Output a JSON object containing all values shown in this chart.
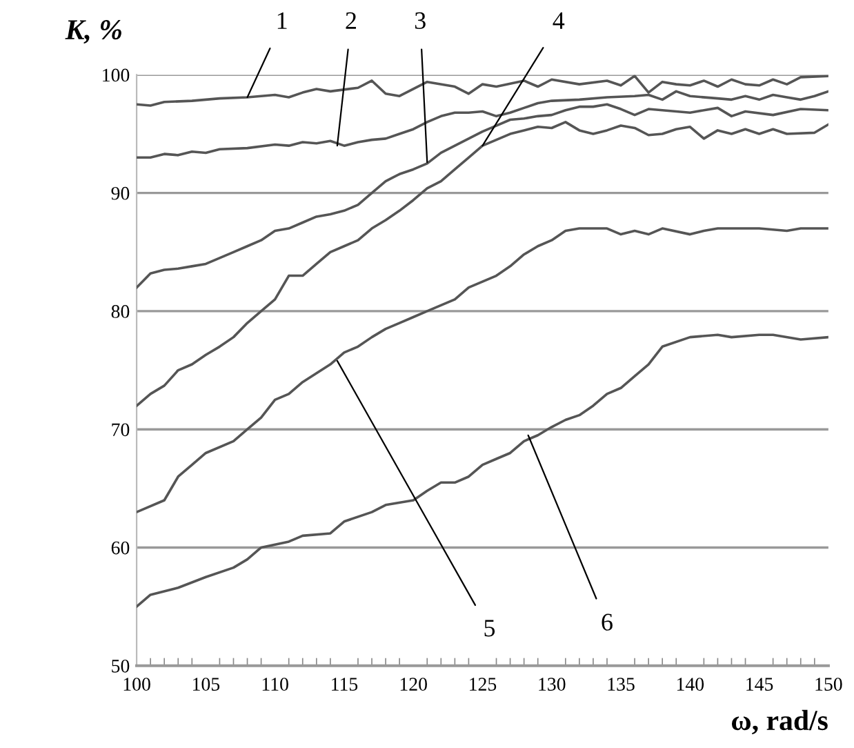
{
  "chart_data": {
    "type": "line",
    "xlabel": "ω, rad/s",
    "ylabel": "K, %",
    "xlim": [
      100,
      150
    ],
    "xticks": [
      100,
      105,
      110,
      115,
      120,
      125,
      130,
      135,
      140,
      145,
      150
    ],
    "ylim": [
      50,
      100
    ],
    "yticks": [
      50,
      60,
      70,
      80,
      90,
      100
    ],
    "grid": "y",
    "marker": "none",
    "line_style": "solid",
    "legend": false,
    "series": [
      {
        "color": "#555555",
        "x": [
          100,
          101,
          102,
          104,
          106,
          108,
          110,
          111,
          112,
          113,
          114,
          116,
          117,
          118,
          119,
          120,
          121,
          123,
          124,
          125,
          126,
          128,
          129,
          130,
          132,
          134,
          135,
          136,
          137,
          138,
          139,
          140,
          141,
          142,
          143,
          144,
          145,
          146,
          147,
          148,
          150
        ],
        "values": [
          97.5,
          97.4,
          97.7,
          97.8,
          98,
          98.1,
          98.3,
          98.1,
          98.5,
          98.8,
          98.6,
          98.9,
          99.5,
          98.4,
          98.2,
          98.8,
          99.4,
          99,
          98.4,
          99.2,
          99,
          99.5,
          99,
          99.6,
          99.2,
          99.5,
          99.1,
          99.9,
          98.5,
          99.4,
          99.2,
          99.1,
          99.5,
          99.0,
          99.6,
          99.2,
          99.1,
          99.6,
          99.2,
          99.8,
          99.9
        ]
      },
      {
        "color": "#555555",
        "x": [
          100,
          101,
          102,
          103,
          104,
          105,
          106,
          108,
          110,
          111,
          112,
          113,
          114,
          115,
          116,
          117,
          118,
          119,
          120,
          121,
          122,
          123,
          124,
          125,
          126,
          127,
          128,
          129,
          130,
          132,
          134,
          136,
          137,
          138,
          139,
          140,
          142,
          143,
          144,
          145,
          146,
          147,
          148,
          149,
          150
        ],
        "values": [
          93,
          93.0,
          93.3,
          93.2,
          93.5,
          93.4,
          93.7,
          93.8,
          94.1,
          94,
          94.3,
          94.2,
          94.4,
          94,
          94.3,
          94.5,
          94.6,
          95,
          95.4,
          96,
          96.5,
          96.8,
          96.8,
          96.9,
          96.5,
          96.8,
          97.2,
          97.6,
          97.8,
          97.9,
          98.1,
          98.2,
          98.3,
          97.9,
          98.6,
          98.2,
          98.0,
          97.9,
          98.2,
          97.9,
          98.3,
          98.1,
          97.9,
          98.2,
          98.6
        ]
      },
      {
        "color": "#555555",
        "x": [
          100,
          101,
          102,
          103,
          104,
          105,
          106,
          107,
          108,
          109,
          110,
          111,
          112,
          113,
          114,
          115,
          116,
          117,
          118,
          119,
          120,
          121,
          122,
          123,
          124,
          125,
          126,
          127,
          128,
          129,
          130,
          131,
          132,
          133,
          134,
          135,
          136,
          137,
          138,
          140,
          142,
          143,
          144,
          146,
          148,
          150
        ],
        "values": [
          82,
          83.2,
          83.5,
          83.6,
          83.8,
          84,
          84.5,
          85,
          85.5,
          86,
          86.8,
          87,
          87.5,
          88,
          88.2,
          88.5,
          89,
          90,
          91,
          91.6,
          92,
          92.5,
          93.4,
          94,
          94.6,
          95.2,
          95.7,
          96.2,
          96.3,
          96.5,
          96.6,
          97.0,
          97.3,
          97.3,
          97.5,
          97.1,
          96.6,
          97.1,
          97.0,
          96.8,
          97.2,
          96.5,
          96.9,
          96.6,
          97.1,
          97.0
        ]
      },
      {
        "color": "#555555",
        "x": [
          100,
          101,
          102,
          103,
          104,
          105,
          106,
          107,
          108,
          109,
          110,
          111,
          112,
          113,
          114,
          115,
          116,
          117,
          118,
          119,
          120,
          121,
          122,
          123,
          124,
          125,
          126,
          127,
          128,
          129,
          130,
          131,
          132,
          133,
          134,
          135,
          136,
          137,
          138,
          139,
          140,
          141,
          142,
          143,
          144,
          145,
          146,
          147,
          149,
          150
        ],
        "values": [
          72,
          73,
          73.7,
          75,
          75.5,
          76.3,
          77,
          77.8,
          79,
          80,
          81,
          83,
          83,
          84,
          85,
          85.5,
          86,
          87,
          87.7,
          88.5,
          89.4,
          90.4,
          91,
          92,
          93,
          94,
          94.5,
          95,
          95.3,
          95.6,
          95.5,
          96,
          95.3,
          95,
          95.3,
          95.7,
          95.5,
          94.9,
          95,
          95.4,
          95.6,
          94.6,
          95.3,
          95,
          95.4,
          95,
          95.4,
          95,
          95.1,
          95.8
        ]
      },
      {
        "color": "#555555",
        "x": [
          100,
          102,
          103,
          104,
          105,
          107,
          108,
          109,
          110,
          111,
          112,
          114,
          115,
          116,
          117,
          118,
          119,
          120,
          121,
          123,
          124,
          125,
          126,
          127,
          128,
          129,
          130,
          131,
          132,
          134,
          135,
          136,
          137,
          138,
          140,
          141,
          142,
          145,
          147,
          148,
          150
        ],
        "values": [
          63,
          64,
          66,
          67,
          68,
          69,
          70,
          71,
          72.5,
          73,
          74,
          75.5,
          76.5,
          77,
          77.8,
          78.5,
          79,
          79.5,
          80,
          81,
          82,
          82.5,
          83,
          83.8,
          84.8,
          85.5,
          86,
          86.8,
          87,
          87,
          86.5,
          86.8,
          86.5,
          87,
          86.5,
          86.8,
          87,
          87,
          86.8,
          87,
          87
        ]
      },
      {
        "color": "#555555",
        "x": [
          100,
          101,
          103,
          105,
          107,
          108,
          109,
          111,
          112,
          114,
          115,
          117,
          118,
          120,
          121,
          122,
          123,
          124,
          125,
          126,
          127,
          128,
          129,
          130,
          131,
          132,
          133,
          134,
          135,
          136,
          137,
          138,
          140,
          142,
          143,
          145,
          146,
          148,
          150
        ],
        "values": [
          55,
          56,
          56.6,
          57.5,
          58.3,
          59,
          60,
          60.5,
          61,
          61.2,
          62.2,
          63,
          63.6,
          64,
          64.8,
          65.5,
          65.5,
          66,
          67,
          67.5,
          68,
          69,
          69.5,
          70.2,
          70.8,
          71.2,
          72,
          73,
          73.5,
          74.5,
          75.5,
          77,
          77.8,
          78,
          77.8,
          78,
          78,
          77.6,
          77.8
        ]
      }
    ],
    "annotations": [
      {
        "text": "1",
        "x": 108,
        "y": 98.1
      },
      {
        "text": "2",
        "x": 114.5,
        "y": 94
      },
      {
        "text": "3",
        "x": 121,
        "y": 92.6
      },
      {
        "text": "4",
        "x": 125,
        "y": 94
      },
      {
        "text": "5",
        "x": 114.5,
        "y": 75.8
      },
      {
        "text": "6",
        "x": 128.3,
        "y": 69.5
      }
    ]
  }
}
